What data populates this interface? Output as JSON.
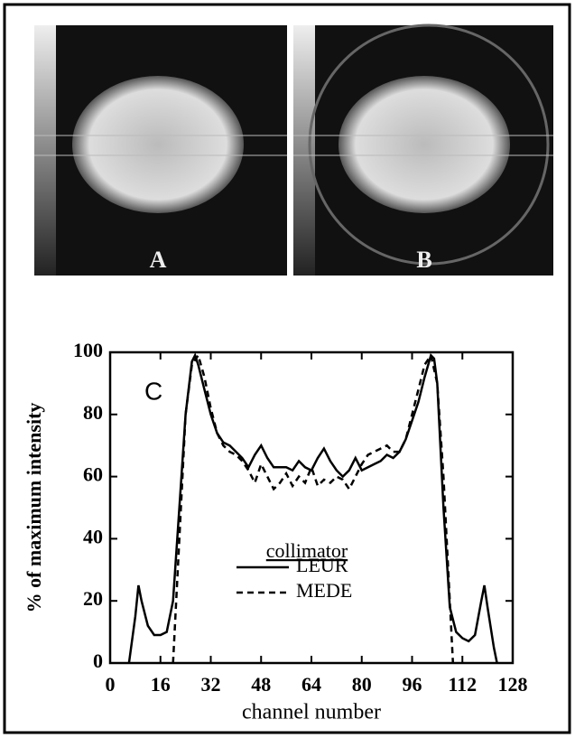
{
  "panels": {
    "a": "A",
    "b": "B"
  },
  "chart_data": {
    "type": "line",
    "panel_label": "C",
    "x_label": "channel number",
    "y_label": "% of maximum intensity",
    "xlim": [
      0,
      128
    ],
    "ylim": [
      0,
      100
    ],
    "xticks": [
      0,
      16,
      32,
      48,
      64,
      80,
      96,
      112,
      128
    ],
    "yticks": [
      0,
      20,
      40,
      60,
      80,
      100
    ],
    "legend_title": "collimator",
    "series": [
      {
        "name": "LEUR",
        "color": "#000",
        "dash": "none",
        "x": [
          6,
          8,
          9,
          10,
          12,
          14,
          16,
          18,
          20,
          22,
          24,
          26,
          27,
          28,
          30,
          32,
          34,
          36,
          38,
          40,
          42,
          44,
          46,
          48,
          50,
          52,
          54,
          56,
          58,
          60,
          62,
          64,
          66,
          68,
          70,
          72,
          74,
          76,
          78,
          80,
          82,
          84,
          86,
          88,
          90,
          92,
          94,
          96,
          98,
          100,
          102,
          103,
          104,
          106,
          108,
          110,
          112,
          114,
          116,
          118,
          119,
          120,
          122,
          123
        ],
        "values": [
          0,
          15,
          25,
          20,
          12,
          9,
          9,
          10,
          20,
          50,
          80,
          97,
          99,
          96,
          88,
          80,
          74,
          71,
          70,
          68,
          66,
          63,
          67,
          70,
          66,
          63,
          63,
          63,
          62,
          65,
          63,
          62,
          66,
          69,
          65,
          62,
          60,
          62,
          66,
          62,
          63,
          64,
          65,
          67,
          66,
          68,
          72,
          78,
          84,
          92,
          99,
          98,
          90,
          50,
          18,
          10,
          8,
          7,
          9,
          20,
          25,
          18,
          5,
          0
        ]
      },
      {
        "name": "MEDE",
        "color": "#000",
        "dash": "7 5",
        "x": [
          20,
          22,
          24,
          26,
          28,
          30,
          32,
          34,
          36,
          38,
          40,
          42,
          44,
          46,
          48,
          50,
          52,
          54,
          56,
          58,
          60,
          62,
          64,
          66,
          68,
          70,
          72,
          74,
          76,
          78,
          80,
          82,
          84,
          86,
          88,
          90,
          92,
          94,
          96,
          98,
          100,
          102,
          104,
          106,
          108,
          109
        ],
        "values": [
          0,
          40,
          80,
          96,
          99,
          92,
          82,
          74,
          70,
          68,
          67,
          65,
          62,
          58,
          64,
          60,
          56,
          58,
          61,
          57,
          60,
          58,
          63,
          57,
          59,
          58,
          60,
          59,
          56,
          60,
          64,
          67,
          68,
          69,
          70,
          68,
          68,
          72,
          80,
          88,
          96,
          99,
          90,
          60,
          20,
          0
        ]
      }
    ]
  }
}
